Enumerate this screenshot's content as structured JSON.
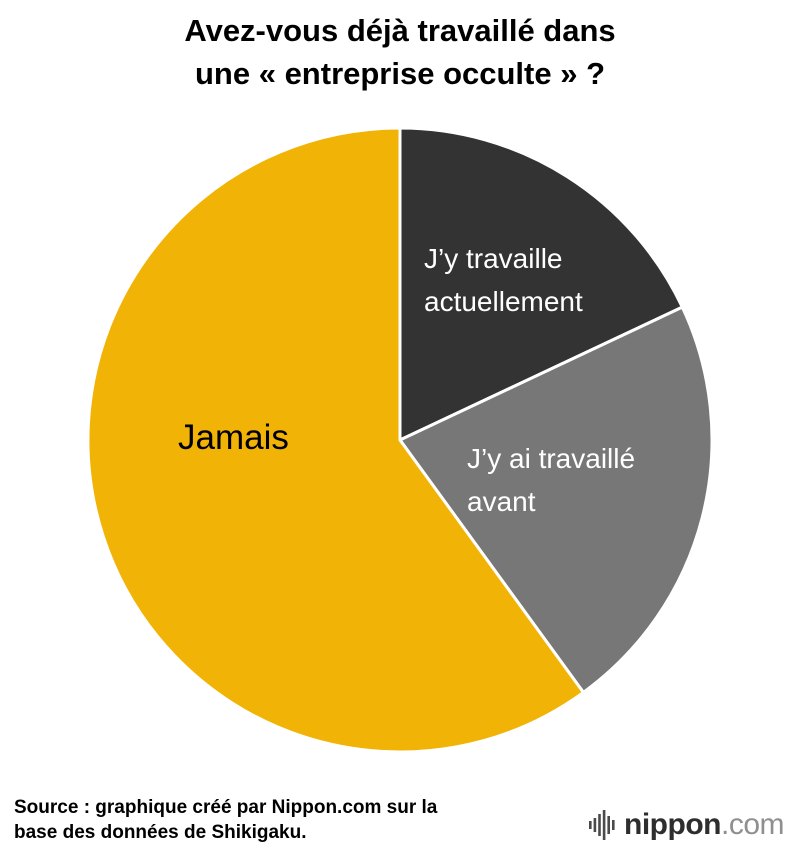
{
  "title": {
    "line1": "Avez-vous déjà travaillé dans",
    "line2": "une « entreprise occulte » ?"
  },
  "chart_data": {
    "type": "pie",
    "title": "Avez-vous déjà travaillé dans une « entreprise occulte » ?",
    "start_angle_deg": 0,
    "direction": "clockwise",
    "values_shown": false,
    "slices": [
      {
        "label": "J’y travaille actuellement",
        "value": 18,
        "color": "#333333",
        "label_color": "#ffffff"
      },
      {
        "label": "J’y ai travaillé avant",
        "value": 22,
        "color": "#777777",
        "label_color": "#ffffff"
      },
      {
        "label": "Jamais",
        "value": 60,
        "color": "#F2B307",
        "label_color": "#000000"
      }
    ],
    "separator_color": "#ffffff"
  },
  "labels": {
    "jamais": "Jamais",
    "current_line1": "J’y travaille",
    "current_line2": "actuellement",
    "before_line1": "J’y ai travaillé",
    "before_line2": "avant"
  },
  "source": {
    "line1": "Source : graphique créé par Nippon.com sur la",
    "line2": "base des données de Shikigaku."
  },
  "logo": {
    "name": "nippon",
    "tld": ".com"
  }
}
